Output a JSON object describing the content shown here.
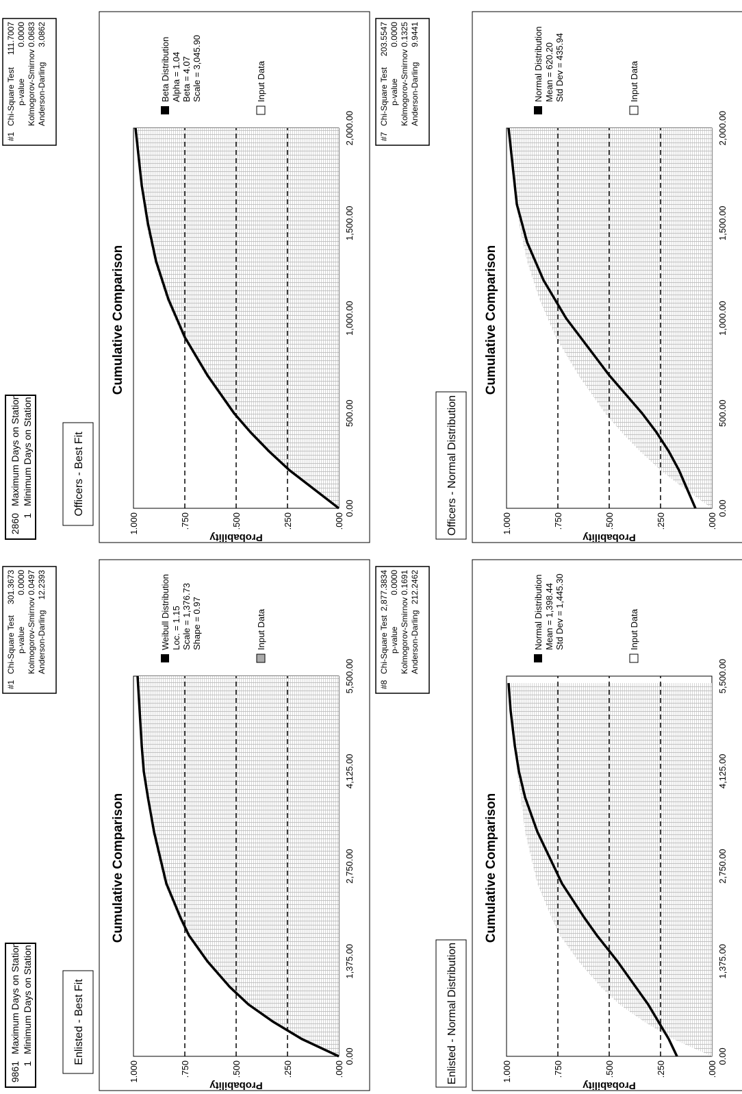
{
  "panels": [
    {
      "id": "enlisted-best-fit",
      "heading": "Enlisted - Best Fit",
      "info": [
        {
          "value": "9861",
          "label": "Maximum Days on Station"
        },
        {
          "value": "1",
          "label": "Minimum Days on Station"
        }
      ],
      "stats": {
        "rank": "#1",
        "rows": [
          {
            "label": "Chi-Square Test",
            "value": "301.3673"
          },
          {
            "label": "p-value",
            "value": "0.0000"
          },
          {
            "label": "Kolmogorov-Smirnov",
            "value": "0.0497"
          },
          {
            "label": "Anderson-Darling",
            "value": "12.2393"
          }
        ]
      },
      "legend": {
        "dist_name": "Weibull Distribution",
        "params": [
          "Loc. = 1.15",
          "Scale = 1,376.73",
          "Shape = 0.97"
        ],
        "input_label": "Input Data"
      }
    },
    {
      "id": "officers-best-fit",
      "heading": "Officers - Best Fit",
      "info": [
        {
          "value": "2860",
          "label": "Maximum Days on Station"
        },
        {
          "value": "1",
          "label": "Minimum Days on Station"
        }
      ],
      "stats": {
        "rank": "#1",
        "rows": [
          {
            "label": "Chi-Square Test",
            "value": "111.7007"
          },
          {
            "label": "p-value",
            "value": "0.0000"
          },
          {
            "label": "Kolmogorov-Smirnov",
            "value": "0.0683"
          },
          {
            "label": "Anderson-Darling",
            "value": "3.0862"
          }
        ]
      },
      "legend": {
        "dist_name": "Beta Distribution",
        "params": [
          "Alpha = 1.04",
          "Beta = 4.07",
          "Scale = 3,045.90"
        ],
        "input_label": "Input Data"
      }
    },
    {
      "id": "enlisted-normal",
      "heading": "Enlisted - Normal Distribution",
      "info": [],
      "stats": {
        "rank": "#8",
        "rows": [
          {
            "label": "Chi-Square Test",
            "value": "2,877.3834"
          },
          {
            "label": "p-value",
            "value": "0.0000"
          },
          {
            "label": "Kolmogorov-Smirnov",
            "value": "0.1691"
          },
          {
            "label": "Anderson-Darling",
            "value": "212.2462"
          }
        ]
      },
      "legend": {
        "dist_name": "Normal Distribution",
        "params": [
          "Mean = 1,398.44",
          "Std Dev = 1,445.30"
        ],
        "input_label": "Input Data"
      }
    },
    {
      "id": "officers-normal",
      "heading": "Officers - Normal Distribution",
      "info": [],
      "stats": {
        "rank": "#7",
        "rows": [
          {
            "label": "Chi-Square Test",
            "value": "203.5547"
          },
          {
            "label": "p-value",
            "value": "0.0000"
          },
          {
            "label": "Kolmogorov-Smirnov",
            "value": "0.1325"
          },
          {
            "label": "Anderson-Darling",
            "value": "9.9441"
          }
        ]
      },
      "legend": {
        "dist_name": "Normal Distribution",
        "params": [
          "Mean = 620.20",
          "Std Dev = 435.94"
        ],
        "input_label": "Input Data"
      }
    }
  ],
  "chart_data": [
    {
      "type": "area",
      "title": "Cumulative Comparison",
      "ylabel": "Probability",
      "ylim": [
        0,
        1
      ],
      "y_ticks": [
        "1.000",
        ".750",
        ".500",
        ".250",
        ".000"
      ],
      "x_ticks": [
        "0.00",
        "1,375.00",
        "2,750.00",
        "4,125.00",
        "5,500.00"
      ],
      "xlim": [
        0,
        5500
      ],
      "series": [
        {
          "name": "Weibull Distribution",
          "x": [
            0,
            250,
            500,
            750,
            1000,
            1375,
            1750,
            2000,
            2500,
            2750,
            3250,
            3750,
            4125,
            4500,
            5000,
            5500
          ],
          "y": [
            0,
            0.18,
            0.32,
            0.44,
            0.53,
            0.64,
            0.73,
            0.77,
            0.84,
            0.86,
            0.9,
            0.93,
            0.95,
            0.96,
            0.97,
            0.98
          ]
        },
        {
          "name": "Input Data",
          "x": [
            0,
            250,
            500,
            750,
            1000,
            1375,
            1750,
            2000,
            2500,
            2750,
            3250,
            3750,
            4125,
            4500,
            5000,
            5500
          ],
          "y": [
            0,
            0.19,
            0.33,
            0.45,
            0.54,
            0.65,
            0.74,
            0.78,
            0.85,
            0.87,
            0.91,
            0.93,
            0.95,
            0.96,
            0.97,
            0.98
          ]
        }
      ],
      "grid": "dashed horizontal at .250 .500 .750",
      "legend_position": "right"
    },
    {
      "type": "area",
      "title": "Cumulative Comparison",
      "ylabel": "Probability",
      "ylim": [
        0,
        1
      ],
      "y_ticks": [
        "1.000",
        ".750",
        ".500",
        ".250",
        ".000"
      ],
      "x_ticks": [
        "0.00",
        "500.00",
        "1,000.00",
        "1,500.00",
        "2,000.00"
      ],
      "xlim": [
        0,
        2000
      ],
      "series": [
        {
          "name": "Beta Distribution",
          "x": [
            0,
            100,
            200,
            300,
            400,
            500,
            700,
            900,
            1100,
            1300,
            1500,
            1700,
            1900,
            2000
          ],
          "y": [
            0,
            0.12,
            0.24,
            0.34,
            0.43,
            0.51,
            0.64,
            0.75,
            0.83,
            0.89,
            0.93,
            0.96,
            0.98,
            0.99
          ]
        },
        {
          "name": "Input Data",
          "x": [
            0,
            100,
            200,
            300,
            400,
            500,
            700,
            900,
            1100,
            1300,
            1500,
            1700,
            1900,
            2000
          ],
          "y": [
            0,
            0.13,
            0.25,
            0.35,
            0.44,
            0.52,
            0.65,
            0.76,
            0.84,
            0.9,
            0.94,
            0.96,
            0.98,
            0.99
          ]
        }
      ],
      "grid": "dashed horizontal at .250 .500 .750",
      "legend_position": "right"
    },
    {
      "type": "area",
      "title": "Cumulative Comparison",
      "ylabel": "Probability",
      "ylim": [
        0,
        1
      ],
      "y_ticks": [
        "1.000",
        ".750",
        ".500",
        ".250",
        ".000"
      ],
      "x_ticks": [
        "0.00",
        "1,375.00",
        "2,750.00",
        "4,125.00",
        "5,500.00"
      ],
      "xlim": [
        0,
        5500
      ],
      "series": [
        {
          "name": "Normal Distribution",
          "x": [
            0,
            250,
            500,
            750,
            1000,
            1375,
            1750,
            2000,
            2500,
            2750,
            3250,
            3750,
            4125,
            4500,
            5000,
            5400
          ],
          "y": [
            0.17,
            0.21,
            0.26,
            0.31,
            0.37,
            0.46,
            0.56,
            0.62,
            0.73,
            0.77,
            0.85,
            0.91,
            0.94,
            0.96,
            0.98,
            0.99
          ]
        },
        {
          "name": "Input Data",
          "x": [
            0,
            250,
            500,
            750,
            1000,
            1375,
            1750,
            2000,
            2500,
            2750,
            3250,
            3750,
            4125,
            4500,
            5000,
            5400
          ],
          "y": [
            0,
            0.19,
            0.33,
            0.45,
            0.54,
            0.65,
            0.74,
            0.78,
            0.85,
            0.87,
            0.91,
            0.93,
            0.95,
            0.96,
            0.97,
            0.98
          ]
        }
      ],
      "grid": "dashed horizontal at .250 .500 .750",
      "legend_position": "right"
    },
    {
      "type": "area",
      "title": "Cumulative Comparison",
      "ylabel": "Probability",
      "ylim": [
        0,
        1
      ],
      "y_ticks": [
        "1.000",
        ".750",
        ".500",
        ".250",
        ".000"
      ],
      "x_ticks": [
        "0.00",
        "500.00",
        "1,000.00",
        "1,500.00",
        "2,000.00"
      ],
      "xlim": [
        0,
        2000
      ],
      "series": [
        {
          "name": "Normal Distribution",
          "x": [
            0,
            100,
            200,
            300,
            400,
            500,
            600,
            700,
            800,
            900,
            1000,
            1200,
            1400,
            1600,
            1800,
            2000
          ],
          "y": [
            0.08,
            0.12,
            0.16,
            0.21,
            0.27,
            0.34,
            0.42,
            0.5,
            0.57,
            0.64,
            0.71,
            0.82,
            0.9,
            0.95,
            0.97,
            0.99
          ]
        },
        {
          "name": "Input Data",
          "x": [
            0,
            100,
            200,
            300,
            400,
            500,
            700,
            900,
            1100,
            1300,
            1500,
            1700,
            1900,
            2000
          ],
          "y": [
            0,
            0.13,
            0.25,
            0.35,
            0.44,
            0.52,
            0.65,
            0.76,
            0.84,
            0.9,
            0.94,
            0.96,
            0.98,
            0.99
          ]
        }
      ],
      "grid": "dashed horizontal at .250 .500 .750",
      "legend_position": "right"
    }
  ]
}
